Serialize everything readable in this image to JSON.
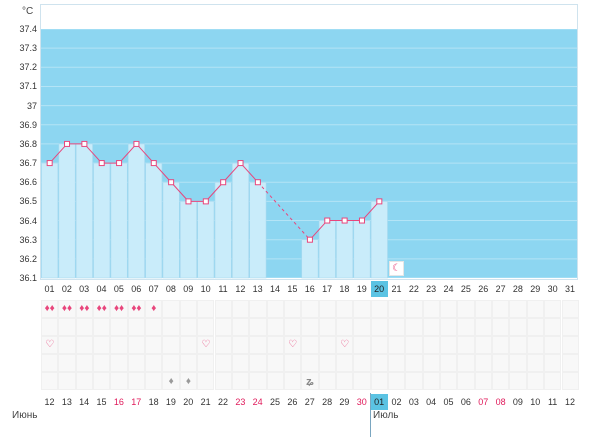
{
  "y_axis": {
    "unit": "°C",
    "min": 36.1,
    "max": 37.4,
    "ticks": [
      "37.4",
      "37.3",
      "37.2",
      "37.1",
      "37",
      "36.9",
      "36.8",
      "36.7",
      "36.6",
      "36.5",
      "36.4",
      "36.3",
      "36.2",
      "36.1"
    ]
  },
  "cycle_days": [
    "01",
    "02",
    "03",
    "04",
    "05",
    "06",
    "07",
    "08",
    "09",
    "10",
    "11",
    "12",
    "13",
    "14",
    "15",
    "16",
    "17",
    "18",
    "19",
    "20",
    "21",
    "22",
    "23",
    "24",
    "25",
    "26",
    "27",
    "28",
    "29",
    "30",
    "31"
  ],
  "current_cycle_day": "20",
  "temperatures": [
    36.7,
    36.8,
    36.8,
    36.7,
    36.7,
    36.8,
    36.7,
    36.6,
    36.5,
    36.5,
    36.6,
    36.7,
    36.6,
    null,
    null,
    36.3,
    36.4,
    36.4,
    36.4,
    36.5,
    null,
    null,
    null,
    null,
    null,
    null,
    null,
    null,
    null,
    null,
    null
  ],
  "dashed_gap": [
    13,
    16
  ],
  "ovulation_icon_day": 21,
  "menstruation": [
    "large",
    "large",
    "large",
    "large",
    "large",
    "large",
    "small",
    null,
    null,
    null,
    null,
    null,
    null,
    null,
    null,
    null,
    null,
    null,
    null,
    null,
    null,
    null,
    null,
    null,
    null,
    null,
    null,
    null,
    null,
    null,
    null
  ],
  "hearts": [
    1,
    10,
    15,
    18
  ],
  "discharge": [
    8,
    9
  ],
  "swirl": [
    16
  ],
  "dates": [
    {
      "d": "12",
      "red": false
    },
    {
      "d": "13",
      "red": false
    },
    {
      "d": "14",
      "red": false
    },
    {
      "d": "15",
      "red": false
    },
    {
      "d": "16",
      "red": true
    },
    {
      "d": "17",
      "red": true
    },
    {
      "d": "18",
      "red": false
    },
    {
      "d": "19",
      "red": false
    },
    {
      "d": "20",
      "red": false
    },
    {
      "d": "21",
      "red": false
    },
    {
      "d": "22",
      "red": false
    },
    {
      "d": "23",
      "red": true
    },
    {
      "d": "24",
      "red": true
    },
    {
      "d": "25",
      "red": false
    },
    {
      "d": "26",
      "red": false
    },
    {
      "d": "27",
      "red": false
    },
    {
      "d": "28",
      "red": false
    },
    {
      "d": "29",
      "red": false
    },
    {
      "d": "30",
      "red": true
    },
    {
      "d": "01",
      "red": false
    },
    {
      "d": "02",
      "red": false
    },
    {
      "d": "03",
      "red": false
    },
    {
      "d": "04",
      "red": false
    },
    {
      "d": "05",
      "red": false
    },
    {
      "d": "06",
      "red": false
    },
    {
      "d": "07",
      "red": true
    },
    {
      "d": "08",
      "red": true
    },
    {
      "d": "09",
      "red": false
    },
    {
      "d": "10",
      "red": false
    },
    {
      "d": "11",
      "red": false
    },
    {
      "d": "12",
      "red": false
    }
  ],
  "highlighted_date_index": 19,
  "months": {
    "first": "Июнь",
    "second": "Июль"
  },
  "colors": {
    "chart_bg": "#8dd6f1",
    "bar": "#c9ecfa",
    "line": "#e8467c",
    "accent": "#5bc3e3"
  }
}
